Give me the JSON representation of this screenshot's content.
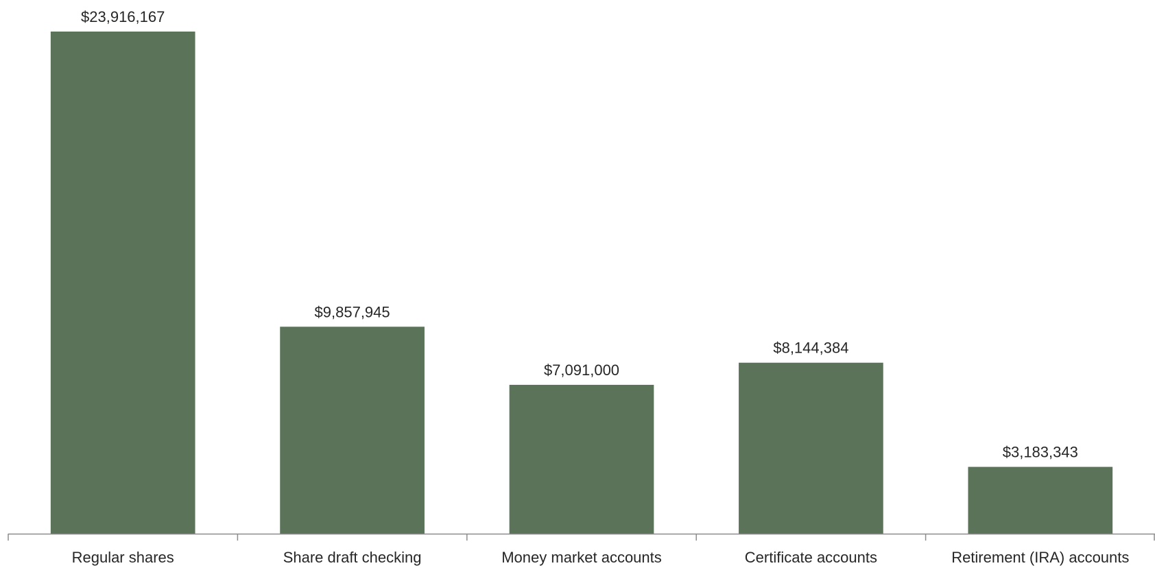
{
  "chart_data": {
    "type": "bar",
    "title": "",
    "xlabel": "",
    "ylabel": "",
    "categories": [
      "Regular shares",
      "Share draft checking",
      "Money market accounts",
      "Certificate accounts",
      "Retirement (IRA) accounts"
    ],
    "values": [
      23916167,
      9857945,
      7091000,
      8144384,
      3183343
    ],
    "data_labels": [
      "$23,916,167",
      "$9,857,945",
      "$7,091,000",
      "$8,144,384",
      "$3,183,343"
    ],
    "ylim": [
      0,
      23916167
    ],
    "grid": false,
    "legend": "none",
    "colors": {
      "bar": "#5a7359",
      "axis": "#8c8c8c",
      "text": "#262626"
    }
  }
}
